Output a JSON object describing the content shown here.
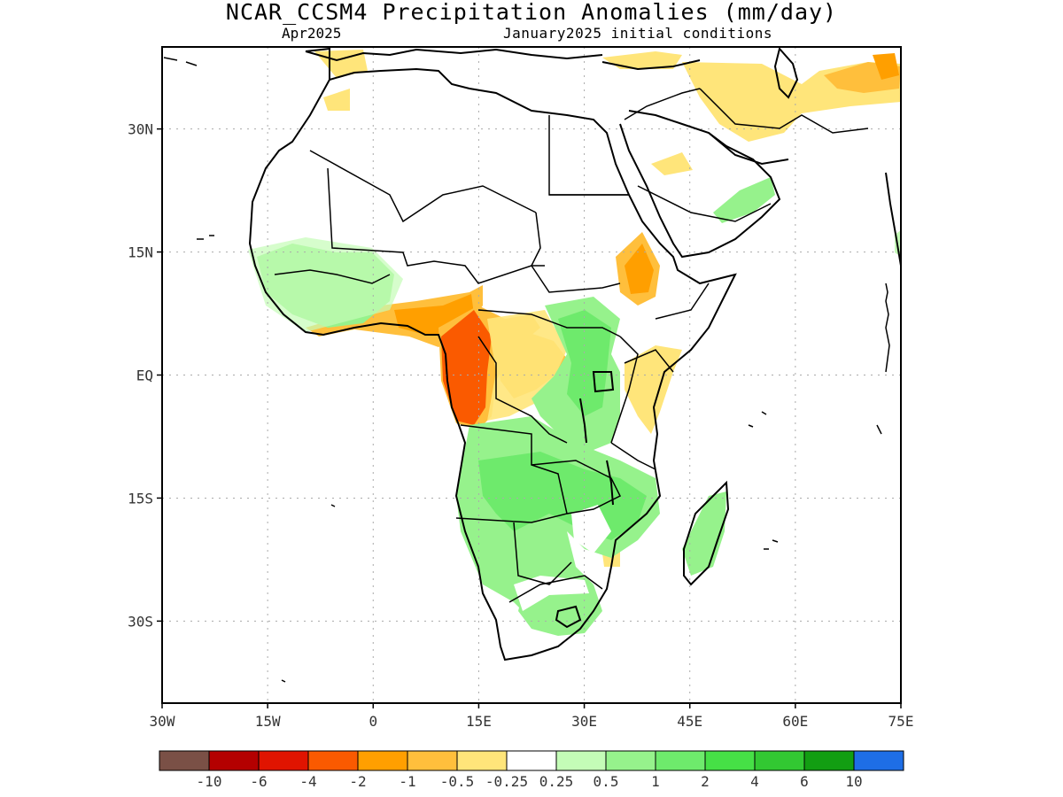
{
  "header": {
    "title": "NCAR_CCSM4 Precipitation Anomalies (mm/day)",
    "valid_month": "Apr2025",
    "initial_conditions": "January2025 initial conditions"
  },
  "map": {
    "region": "Africa",
    "lon_range": [
      -30,
      75
    ],
    "lat_range": [
      -40,
      40
    ],
    "lon_ticks": [
      {
        "value": -30,
        "label": "30W"
      },
      {
        "value": -15,
        "label": "15W"
      },
      {
        "value": 0,
        "label": "0"
      },
      {
        "value": 15,
        "label": "15E"
      },
      {
        "value": 30,
        "label": "30E"
      },
      {
        "value": 45,
        "label": "45E"
      },
      {
        "value": 60,
        "label": "60E"
      },
      {
        "value": 75,
        "label": "75E"
      }
    ],
    "lat_ticks": [
      {
        "value": 30,
        "label": "30N"
      },
      {
        "value": 15,
        "label": "15N"
      },
      {
        "value": 0,
        "label": "EQ"
      },
      {
        "value": -15,
        "label": "15S"
      },
      {
        "value": -30,
        "label": "30S"
      }
    ],
    "grid": "dotted"
  },
  "colorbar": {
    "colors": [
      "#7a5046",
      "#b40000",
      "#e01400",
      "#fa5a00",
      "#ff9f00",
      "#ffbf3c",
      "#ffe57a",
      "#ffffff",
      "#c4fcb7",
      "#96f28c",
      "#6eea6c",
      "#46e046",
      "#32c832",
      "#129e12",
      "#1e6ee6"
    ],
    "labels": [
      "-10",
      "-6",
      "-4",
      "-2",
      "-1",
      "-0.5",
      "-0.25",
      "0.25",
      "0.5",
      "1",
      "2",
      "4",
      "6",
      "10"
    ]
  },
  "chart_data": {
    "type": "heatmap",
    "title": "NCAR_CCSM4 Precipitation Anomalies (mm/day)",
    "subtitle": [
      "Apr2025",
      "January2025 initial conditions"
    ],
    "xlim": [
      -30,
      75
    ],
    "ylim": [
      -40,
      40
    ],
    "units": "mm/day",
    "levels": [
      -10,
      -6,
      -4,
      -2,
      -1,
      -0.5,
      -0.25,
      0.25,
      0.5,
      1,
      2,
      4,
      6,
      10
    ],
    "anomaly_regions": [
      {
        "region": "West African coast (Guinea to Ghana)",
        "value": 1
      },
      {
        "region": "Nigeria / Cameroon coast",
        "value": -2
      },
      {
        "region": "Gabon / Congo coast",
        "value": -4
      },
      {
        "region": "Central Africa (CAR / N Congo)",
        "value": -1
      },
      {
        "region": "South Sudan / Uganda / E DRC",
        "value": 1
      },
      {
        "region": "Angola / Zambia / Mozambique",
        "value": 1
      },
      {
        "region": "South Africa east",
        "value": 1
      },
      {
        "region": "Ethiopian highlands",
        "value": -1
      },
      {
        "region": "Kenya / Somalia coast",
        "value": -0.5
      },
      {
        "region": "Madagascar east",
        "value": 1
      },
      {
        "region": "Iran / Afghanistan",
        "value": -0.5
      },
      {
        "region": "Oman",
        "value": 0.5
      }
    ]
  }
}
